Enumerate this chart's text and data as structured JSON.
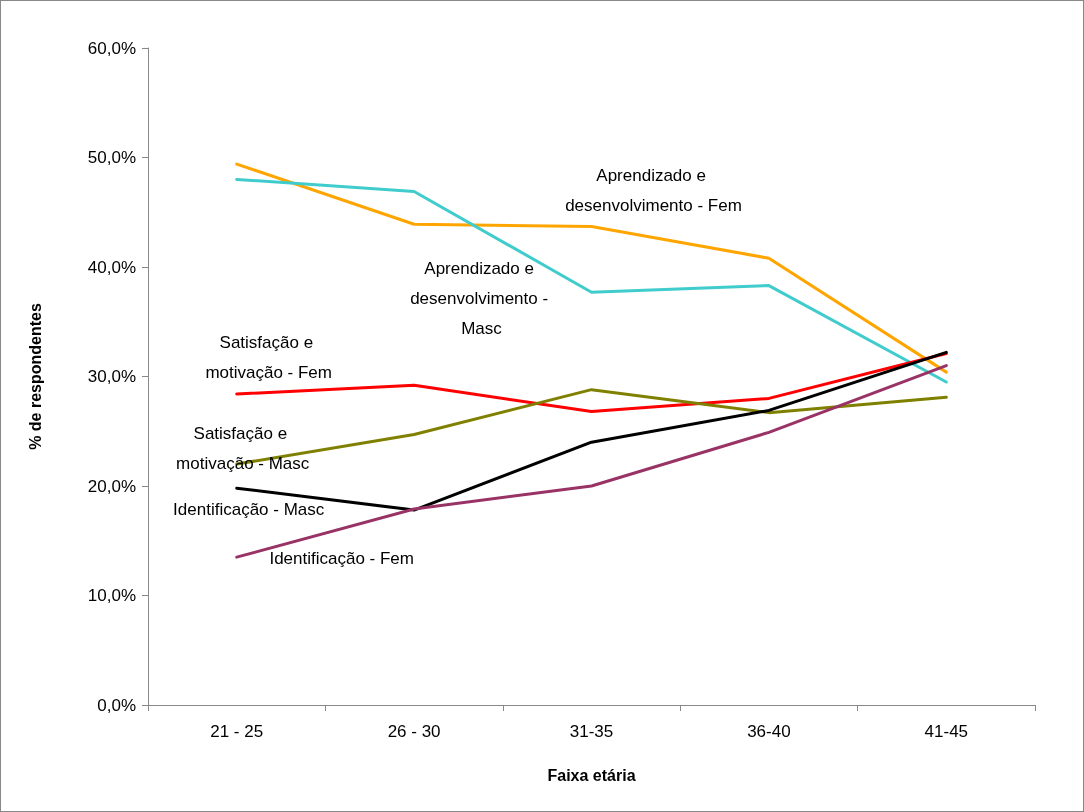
{
  "chart_data": {
    "type": "line",
    "xlabel": "Faixa etária",
    "ylabel": "% de respondentes",
    "categories": [
      "21 - 25",
      "26 - 30",
      "31-35",
      "36-40",
      "41-45"
    ],
    "ylim": [
      0,
      60
    ],
    "yticks": [
      {
        "value": 0,
        "label": "0,0%"
      },
      {
        "value": 10,
        "label": "10,0%"
      },
      {
        "value": 20,
        "label": "20,0%"
      },
      {
        "value": 30,
        "label": "30,0%"
      },
      {
        "value": 40,
        "label": "40,0%"
      },
      {
        "value": 50,
        "label": "50,0%"
      },
      {
        "value": 60,
        "label": "60,0%"
      }
    ],
    "grid": false,
    "legend": false,
    "marker": "none",
    "line_style": "solid",
    "series": [
      {
        "name": "Aprendizado e desenvolvimento - Fem",
        "color": "#ffa500",
        "values": [
          49.4,
          43.9,
          43.7,
          40.8,
          30.4
        ]
      },
      {
        "name": "Aprendizado e desenvolvimento - Masc",
        "color": "#40cccc",
        "values": [
          48.0,
          46.9,
          37.7,
          38.3,
          29.5
        ]
      },
      {
        "name": "Satisfação e motivação - Fem",
        "color": "#ff0000",
        "values": [
          28.4,
          29.2,
          26.8,
          28.0,
          32.1
        ]
      },
      {
        "name": "Satisfação e motivação - Masc",
        "color": "#808000",
        "values": [
          22.0,
          24.7,
          28.8,
          26.7,
          28.1
        ]
      },
      {
        "name": "Identificação - Masc",
        "color": "#000000",
        "values": [
          19.8,
          17.8,
          24.0,
          26.9,
          32.2
        ]
      },
      {
        "name": "Identificação - Fem",
        "color": "#993366",
        "values": [
          13.5,
          17.9,
          20.0,
          24.9,
          31.0
        ]
      }
    ]
  }
}
